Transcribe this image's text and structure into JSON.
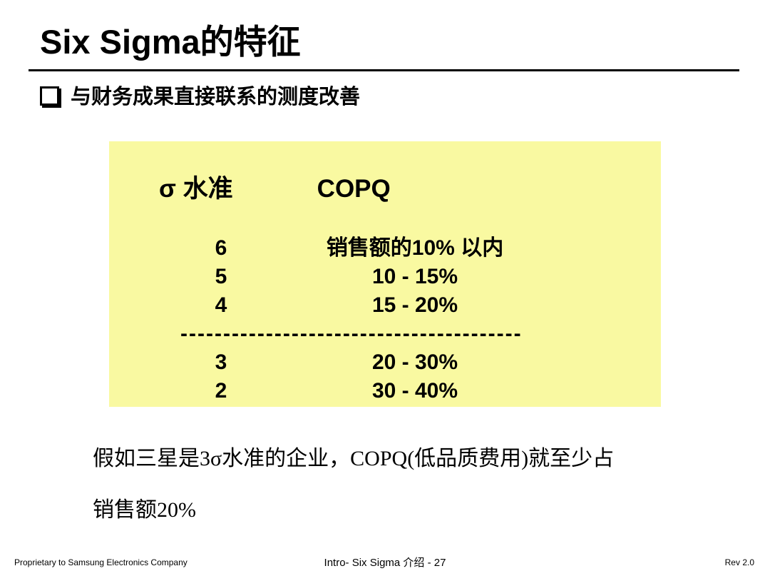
{
  "slide": {
    "title": "Six Sigma的特征",
    "bullet": {
      "text": "与财务成果直接联系的测度改善"
    },
    "table": {
      "bg_color": "#f9f9a1",
      "header": {
        "col1": "σ 水准",
        "col2": "COPQ"
      },
      "rows": [
        {
          "level": "6",
          "copq": "销售额的10% 以内"
        },
        {
          "level": "5",
          "copq": "10 - 15%"
        },
        {
          "level": "4",
          "copq": "15 - 20%"
        },
        {
          "level": "3",
          "copq": "20 - 30%"
        },
        {
          "level": "2",
          "copq": "30 - 40%"
        }
      ],
      "divider": "----------------------------------------"
    },
    "note": {
      "line1": "假如三星是3σ水准的企业，COPQ(低品质费用)就至少占",
      "line2": "销售额20%"
    },
    "footer": {
      "left": "Proprietary to Samsung Electronics Company",
      "center": "Intro- Six Sigma 介绍 - 27",
      "right": "Rev 2.0"
    }
  }
}
